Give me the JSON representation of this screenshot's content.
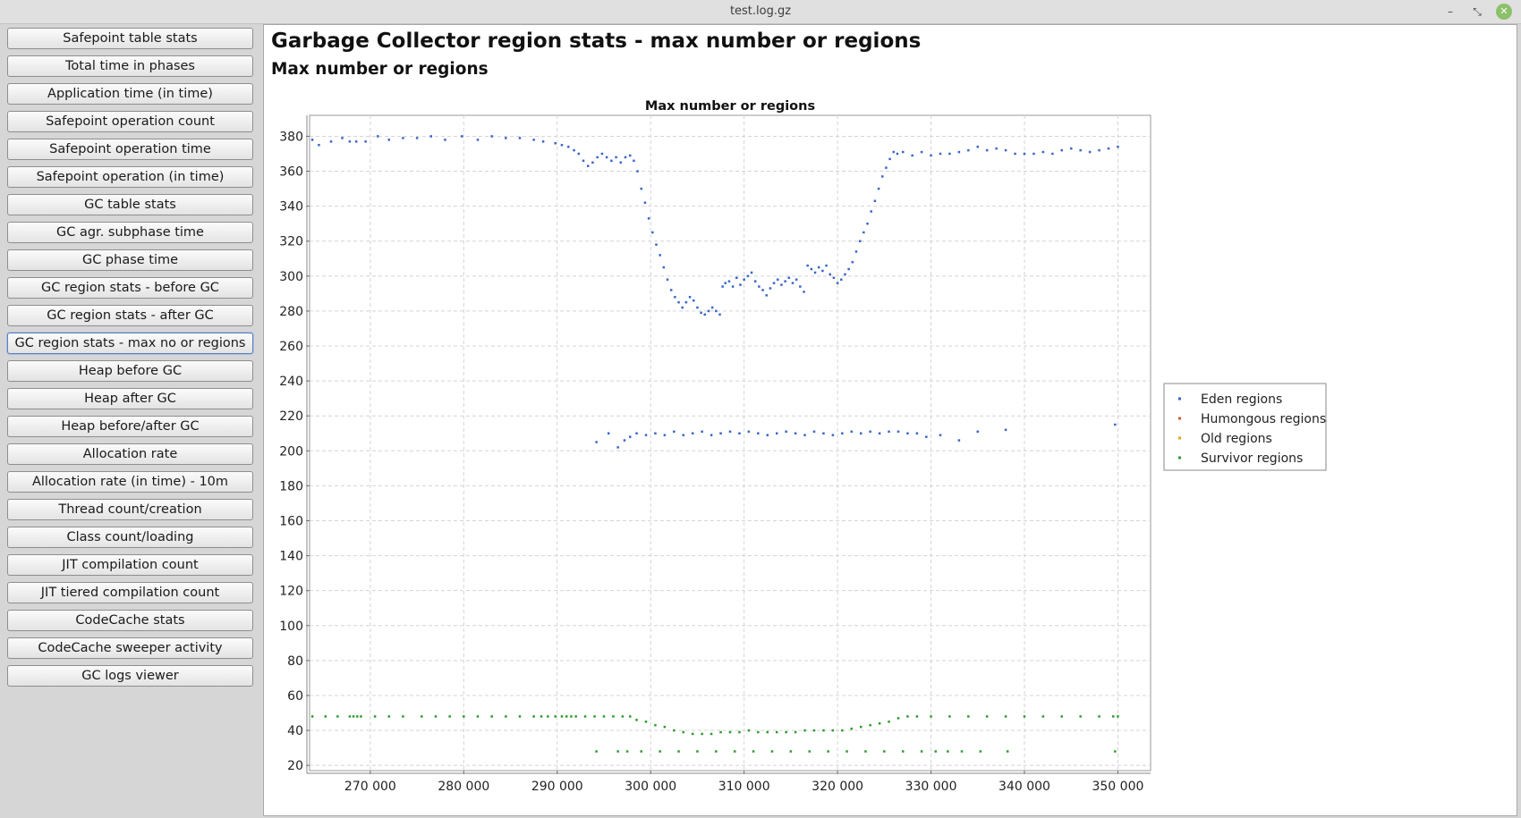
{
  "window": {
    "title": "test.log.gz",
    "controls": [
      "minimize-icon",
      "maximize-icon",
      "close-icon"
    ]
  },
  "sidebar": {
    "items": [
      {
        "label": "Safepoint table stats"
      },
      {
        "label": "Total time in phases"
      },
      {
        "label": "Application time (in time)"
      },
      {
        "label": "Safepoint operation count"
      },
      {
        "label": "Safepoint operation time"
      },
      {
        "label": "Safepoint operation (in time)"
      },
      {
        "label": "GC table stats"
      },
      {
        "label": "GC agr. subphase time"
      },
      {
        "label": "GC phase time"
      },
      {
        "label": "GC region stats - before GC"
      },
      {
        "label": "GC region stats - after GC"
      },
      {
        "label": "GC region stats - max no or regions",
        "active": true
      },
      {
        "label": "Heap before GC"
      },
      {
        "label": "Heap after GC"
      },
      {
        "label": "Heap before/after GC"
      },
      {
        "label": "Allocation rate"
      },
      {
        "label": "Allocation rate (in time) - 10m"
      },
      {
        "label": "Thread count/creation"
      },
      {
        "label": "Class count/loading"
      },
      {
        "label": "JIT compilation count"
      },
      {
        "label": "JIT tiered compilation count"
      },
      {
        "label": "CodeCache stats"
      },
      {
        "label": "CodeCache sweeper activity"
      },
      {
        "label": "GC logs viewer"
      }
    ]
  },
  "main": {
    "title": "Garbage Collector region stats - max number or regions",
    "subtitle": "Max number or regions"
  },
  "chart_data": {
    "type": "scatter",
    "title": "Max number or regions",
    "xlabel": "",
    "ylabel": "",
    "xlim": [
      263500,
      353500
    ],
    "ylim": [
      17,
      392
    ],
    "x_ticks": [
      270000,
      280000,
      290000,
      300000,
      310000,
      320000,
      330000,
      340000,
      350000
    ],
    "x_tick_labels": [
      "270 000",
      "280 000",
      "290 000",
      "300 000",
      "310 000",
      "320 000",
      "330 000",
      "340 000",
      "350 000"
    ],
    "y_ticks": [
      20,
      40,
      60,
      80,
      100,
      120,
      140,
      160,
      180,
      200,
      220,
      240,
      260,
      280,
      300,
      320,
      340,
      360,
      380
    ],
    "grid": true,
    "legend_position": "right",
    "series": [
      {
        "name": "Eden regions",
        "color": "#3a66c8",
        "points": [
          [
            263800,
            378
          ],
          [
            264500,
            375
          ],
          [
            265800,
            377
          ],
          [
            267000,
            379
          ],
          [
            267800,
            377
          ],
          [
            268500,
            377
          ],
          [
            269500,
            377
          ],
          [
            270800,
            380
          ],
          [
            272000,
            378
          ],
          [
            273500,
            379
          ],
          [
            275000,
            379
          ],
          [
            276500,
            380
          ],
          [
            278000,
            378
          ],
          [
            279800,
            380
          ],
          [
            281500,
            378
          ],
          [
            283000,
            380
          ],
          [
            284500,
            379
          ],
          [
            286000,
            379
          ],
          [
            287500,
            378
          ],
          [
            288500,
            377
          ],
          [
            289800,
            376
          ],
          [
            290500,
            375
          ],
          [
            291200,
            374
          ],
          [
            291800,
            372
          ],
          [
            292300,
            370
          ],
          [
            292800,
            366
          ],
          [
            293300,
            363
          ],
          [
            293800,
            365
          ],
          [
            294300,
            368
          ],
          [
            294800,
            370
          ],
          [
            295300,
            368
          ],
          [
            295800,
            366
          ],
          [
            296300,
            368
          ],
          [
            296800,
            365
          ],
          [
            297300,
            368
          ],
          [
            297800,
            369
          ],
          [
            298200,
            366
          ],
          [
            298600,
            360
          ],
          [
            299000,
            350
          ],
          [
            299400,
            342
          ],
          [
            299800,
            333
          ],
          [
            300200,
            325
          ],
          [
            300600,
            318
          ],
          [
            301000,
            312
          ],
          [
            301400,
            305
          ],
          [
            301800,
            298
          ],
          [
            302200,
            292
          ],
          [
            302600,
            288
          ],
          [
            303000,
            285
          ],
          [
            303400,
            282
          ],
          [
            303800,
            285
          ],
          [
            304200,
            288
          ],
          [
            304600,
            286
          ],
          [
            305000,
            282
          ],
          [
            305400,
            279
          ],
          [
            305800,
            278
          ],
          [
            306200,
            280
          ],
          [
            306600,
            282
          ],
          [
            307000,
            280
          ],
          [
            307400,
            278
          ],
          [
            307700,
            294
          ],
          [
            308000,
            296
          ],
          [
            308400,
            297
          ],
          [
            308800,
            294
          ],
          [
            309200,
            299
          ],
          [
            309600,
            295
          ],
          [
            310000,
            298
          ],
          [
            310400,
            300
          ],
          [
            310800,
            302
          ],
          [
            311200,
            297
          ],
          [
            311600,
            294
          ],
          [
            312000,
            292
          ],
          [
            312400,
            289
          ],
          [
            312800,
            293
          ],
          [
            313200,
            296
          ],
          [
            313600,
            298
          ],
          [
            314000,
            295
          ],
          [
            314400,
            297
          ],
          [
            314800,
            299
          ],
          [
            315200,
            296
          ],
          [
            315600,
            298
          ],
          [
            316000,
            294
          ],
          [
            316400,
            291
          ],
          [
            316800,
            306
          ],
          [
            317200,
            304
          ],
          [
            317600,
            302
          ],
          [
            318000,
            305
          ],
          [
            318400,
            303
          ],
          [
            318800,
            306
          ],
          [
            319200,
            301
          ],
          [
            319600,
            299
          ],
          [
            320000,
            296
          ],
          [
            320400,
            298
          ],
          [
            320800,
            301
          ],
          [
            321200,
            304
          ],
          [
            321600,
            308
          ],
          [
            322000,
            314
          ],
          [
            322400,
            320
          ],
          [
            322800,
            325
          ],
          [
            323200,
            330
          ],
          [
            323600,
            337
          ],
          [
            324000,
            343
          ],
          [
            324400,
            350
          ],
          [
            324800,
            357
          ],
          [
            325200,
            362
          ],
          [
            325600,
            367
          ],
          [
            326000,
            371
          ],
          [
            326400,
            370
          ],
          [
            327000,
            371
          ],
          [
            328000,
            369
          ],
          [
            329000,
            371
          ],
          [
            330000,
            369
          ],
          [
            331000,
            370
          ],
          [
            332000,
            370
          ],
          [
            333000,
            371
          ],
          [
            334000,
            372
          ],
          [
            335000,
            374
          ],
          [
            336000,
            372
          ],
          [
            337000,
            373
          ],
          [
            338000,
            372
          ],
          [
            339000,
            370
          ],
          [
            340000,
            370
          ],
          [
            341000,
            370
          ],
          [
            342000,
            371
          ],
          [
            343000,
            370
          ],
          [
            344000,
            372
          ],
          [
            345000,
            373
          ],
          [
            346000,
            372
          ],
          [
            347000,
            371
          ],
          [
            348000,
            372
          ],
          [
            349000,
            373
          ],
          [
            350000,
            374
          ],
          [
            294200,
            205
          ],
          [
            295500,
            210
          ],
          [
            296500,
            202
          ],
          [
            297200,
            206
          ],
          [
            297800,
            208
          ],
          [
            298500,
            210
          ],
          [
            299500,
            209
          ],
          [
            300500,
            210
          ],
          [
            301500,
            209
          ],
          [
            302500,
            211
          ],
          [
            303500,
            209
          ],
          [
            304500,
            210
          ],
          [
            305500,
            211
          ],
          [
            306500,
            209
          ],
          [
            307500,
            210
          ],
          [
            308500,
            211
          ],
          [
            309500,
            210
          ],
          [
            310500,
            211
          ],
          [
            311500,
            210
          ],
          [
            312500,
            209
          ],
          [
            313500,
            210
          ],
          [
            314500,
            211
          ],
          [
            315500,
            210
          ],
          [
            316500,
            209
          ],
          [
            317500,
            211
          ],
          [
            318500,
            210
          ],
          [
            319500,
            209
          ],
          [
            320500,
            210
          ],
          [
            321500,
            211
          ],
          [
            322500,
            210
          ],
          [
            323500,
            211
          ],
          [
            324500,
            210
          ],
          [
            325500,
            211
          ],
          [
            326500,
            211
          ],
          [
            327500,
            210
          ],
          [
            328500,
            210
          ],
          [
            329500,
            208
          ],
          [
            331000,
            209
          ],
          [
            333000,
            206
          ],
          [
            335000,
            211
          ],
          [
            338000,
            212
          ],
          [
            349700,
            215
          ]
        ]
      },
      {
        "name": "Humongous regions",
        "color": "#c8612b",
        "points": []
      },
      {
        "name": "Old regions",
        "color": "#e8a320",
        "points": []
      },
      {
        "name": "Survivor regions",
        "color": "#2e9a2e",
        "points": [
          [
            263800,
            48
          ],
          [
            265200,
            48
          ],
          [
            266500,
            48
          ],
          [
            267800,
            48
          ],
          [
            268200,
            48
          ],
          [
            268600,
            48
          ],
          [
            269000,
            48
          ],
          [
            270500,
            48
          ],
          [
            272000,
            48
          ],
          [
            273500,
            48
          ],
          [
            275500,
            48
          ],
          [
            277000,
            48
          ],
          [
            278500,
            48
          ],
          [
            280000,
            48
          ],
          [
            281500,
            48
          ],
          [
            283000,
            48
          ],
          [
            284500,
            48
          ],
          [
            286000,
            48
          ],
          [
            287500,
            48
          ],
          [
            288300,
            48
          ],
          [
            289000,
            48
          ],
          [
            289800,
            48
          ],
          [
            290500,
            48
          ],
          [
            291000,
            48
          ],
          [
            291500,
            48
          ],
          [
            292000,
            48
          ],
          [
            293000,
            48
          ],
          [
            294000,
            48
          ],
          [
            295000,
            48
          ],
          [
            296000,
            48
          ],
          [
            297000,
            48
          ],
          [
            297800,
            48
          ],
          [
            298500,
            46
          ],
          [
            299500,
            45
          ],
          [
            300500,
            43
          ],
          [
            301500,
            42
          ],
          [
            302500,
            40
          ],
          [
            303500,
            39
          ],
          [
            304500,
            38
          ],
          [
            305500,
            38
          ],
          [
            306500,
            38
          ],
          [
            307500,
            39
          ],
          [
            308500,
            39
          ],
          [
            309500,
            39
          ],
          [
            310500,
            40
          ],
          [
            311500,
            39
          ],
          [
            312500,
            39
          ],
          [
            313500,
            39
          ],
          [
            314500,
            39
          ],
          [
            315500,
            39
          ],
          [
            316500,
            40
          ],
          [
            317500,
            40
          ],
          [
            318500,
            40
          ],
          [
            319500,
            40
          ],
          [
            320500,
            40
          ],
          [
            321500,
            41
          ],
          [
            322500,
            42
          ],
          [
            323500,
            43
          ],
          [
            324500,
            44
          ],
          [
            325500,
            45
          ],
          [
            326500,
            47
          ],
          [
            327500,
            48
          ],
          [
            328500,
            48
          ],
          [
            330000,
            48
          ],
          [
            332000,
            48
          ],
          [
            334000,
            48
          ],
          [
            336000,
            48
          ],
          [
            338000,
            48
          ],
          [
            340000,
            48
          ],
          [
            342000,
            48
          ],
          [
            344000,
            48
          ],
          [
            346000,
            48
          ],
          [
            348000,
            48
          ],
          [
            349500,
            48
          ],
          [
            350000,
            48
          ],
          [
            294200,
            28
          ],
          [
            296500,
            28
          ],
          [
            297500,
            28
          ],
          [
            299000,
            28
          ],
          [
            301000,
            28
          ],
          [
            303000,
            28
          ],
          [
            305000,
            28
          ],
          [
            307000,
            28
          ],
          [
            309000,
            28
          ],
          [
            311000,
            28
          ],
          [
            313000,
            28
          ],
          [
            315000,
            28
          ],
          [
            317000,
            28
          ],
          [
            319000,
            28
          ],
          [
            321000,
            28
          ],
          [
            323000,
            28
          ],
          [
            325000,
            28
          ],
          [
            327000,
            28
          ],
          [
            329000,
            28
          ],
          [
            330500,
            28
          ],
          [
            331800,
            28
          ],
          [
            333300,
            28
          ],
          [
            335300,
            28
          ],
          [
            338200,
            28
          ],
          [
            349700,
            28
          ]
        ]
      }
    ]
  }
}
